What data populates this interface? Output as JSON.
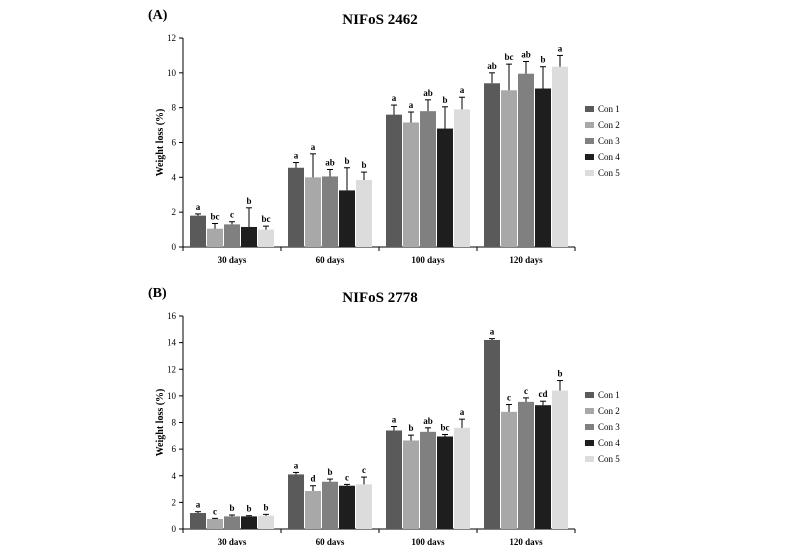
{
  "chart_data": [
    {
      "type": "bar",
      "panel_label": "(A)",
      "title": "NIFoS 2462",
      "xlabel": "",
      "ylabel": "Weight loss (%)",
      "ylim": [
        0,
        12
      ],
      "yticks": [
        "0",
        "2",
        "4",
        "6",
        "8",
        "10",
        "12"
      ],
      "grid": false,
      "legend_position": "right",
      "categories": [
        "30 days",
        "60 days",
        "100 days",
        "120 days"
      ],
      "series": [
        {
          "name": "Con 1",
          "color": "#5a5a5a",
          "values": [
            1.8,
            4.55,
            7.6,
            9.4
          ],
          "errors": [
            0.1,
            0.3,
            0.55,
            0.6
          ],
          "labels": [
            "a",
            "a",
            "a",
            "ab"
          ]
        },
        {
          "name": "Con 2",
          "color": "#a8a8a8",
          "values": [
            1.05,
            4.0,
            7.15,
            9.0
          ],
          "errors": [
            0.3,
            1.35,
            0.6,
            1.5
          ],
          "labels": [
            "bc",
            "a",
            "a",
            "bc"
          ]
        },
        {
          "name": "Con 3",
          "color": "#808080",
          "values": [
            1.3,
            4.05,
            7.8,
            9.95
          ],
          "errors": [
            0.15,
            0.4,
            0.65,
            0.7
          ],
          "labels": [
            "c",
            "ab",
            "ab",
            "ab"
          ]
        },
        {
          "name": "Con 4",
          "color": "#1e1e1e",
          "values": [
            1.15,
            3.25,
            6.8,
            9.1
          ],
          "errors": [
            1.1,
            1.3,
            1.25,
            1.25
          ],
          "labels": [
            "b",
            "b",
            "b",
            "b"
          ]
        },
        {
          "name": "Con 5",
          "color": "#dcdcdc",
          "values": [
            1.0,
            3.85,
            7.9,
            10.35
          ],
          "errors": [
            0.2,
            0.45,
            0.7,
            0.65
          ],
          "labels": [
            "bc",
            "b",
            "a",
            "a"
          ]
        }
      ]
    },
    {
      "type": "bar",
      "panel_label": "(B)",
      "title": "NIFoS 2778",
      "xlabel": "",
      "ylabel": "Weight loss (%)",
      "ylim": [
        0,
        16
      ],
      "yticks": [
        "0",
        "2",
        "4",
        "6",
        "8",
        "10",
        "12",
        "14",
        "16"
      ],
      "grid": false,
      "legend_position": "right",
      "categories": [
        "30 days",
        "60 days",
        "100 days",
        "120 days"
      ],
      "series": [
        {
          "name": "Con 1",
          "color": "#5a5a5a",
          "values": [
            1.2,
            4.1,
            7.4,
            14.2
          ],
          "errors": [
            0.1,
            0.15,
            0.3,
            0.1
          ],
          "labels": [
            "a",
            "a",
            "a",
            "a"
          ]
        },
        {
          "name": "Con 2",
          "color": "#a8a8a8",
          "values": [
            0.75,
            2.85,
            6.65,
            8.8
          ],
          "errors": [
            0.05,
            0.4,
            0.4,
            0.55
          ],
          "labels": [
            "c",
            "d",
            "b",
            "c"
          ]
        },
        {
          "name": "Con 3",
          "color": "#808080",
          "values": [
            0.95,
            3.55,
            7.3,
            9.55
          ],
          "errors": [
            0.1,
            0.2,
            0.3,
            0.3
          ],
          "labels": [
            "b",
            "b",
            "ab",
            "c"
          ]
        },
        {
          "name": "Con 4",
          "color": "#1e1e1e",
          "values": [
            0.95,
            3.25,
            6.95,
            9.3
          ],
          "errors": [
            0.05,
            0.1,
            0.15,
            0.3
          ],
          "labels": [
            "b",
            "c",
            "bc",
            "cd"
          ]
        },
        {
          "name": "Con 5",
          "color": "#dcdcdc",
          "values": [
            1.0,
            3.35,
            7.6,
            10.4
          ],
          "errors": [
            0.1,
            0.55,
            0.65,
            0.75
          ],
          "labels": [
            "b",
            "c",
            "a",
            "b"
          ]
        }
      ]
    }
  ]
}
